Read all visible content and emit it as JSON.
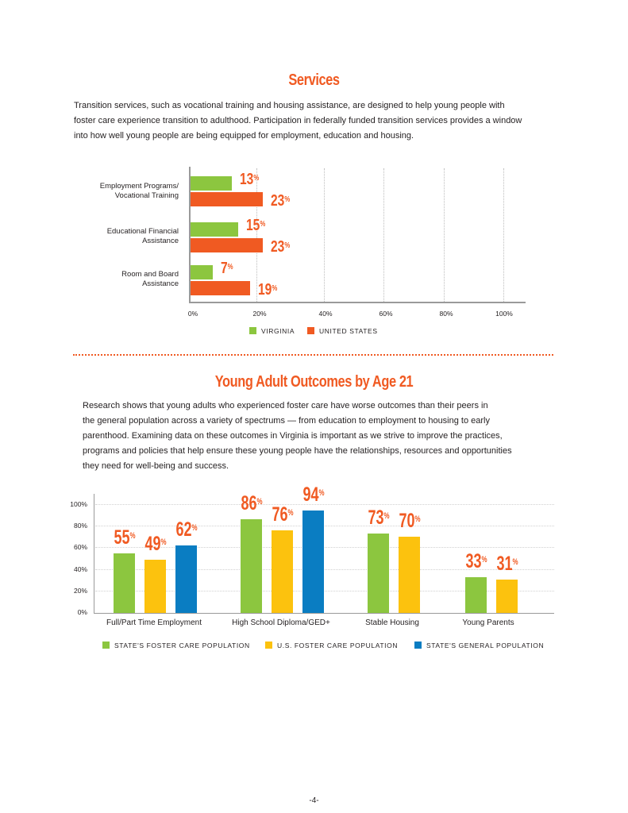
{
  "services": {
    "title": "Services",
    "paragraph_lines": [
      "Transition services, such as vocational training and housing assistance, are designed to help young people with",
      "foster care experience transition to adulthood. Participation in federally funded transition services provides a window",
      "into how well young people are being equipped for employment, education and housing."
    ]
  },
  "outcomes": {
    "title": "Young Adult Outcomes by Age 21",
    "paragraph_lines": [
      "Research shows that young adults who experienced foster care have worse outcomes than their peers in",
      "the general population across a variety of spectrums — from education to employment to housing to early",
      "parenthood. Examining data on these outcomes in Virginia is important as we strive to improve the practices,",
      "programs and policies that help ensure these young people have the relationships, resources and opportunities",
      "they need for well-being and success."
    ]
  },
  "page_number": "-4-",
  "colors": {
    "green": "#8cc63f",
    "orange": "#f05a22",
    "yellow": "#fcc20e",
    "blue": "#0a7dc2"
  },
  "chart_data": [
    {
      "type": "bar",
      "orientation": "horizontal",
      "categories": [
        [
          "Employment Programs/",
          "Vocational Training"
        ],
        [
          "Educational Financial",
          "Assistance"
        ],
        [
          "Room and Board",
          "Assistance"
        ]
      ],
      "series": [
        {
          "name": "VIRGINIA",
          "values": [
            13,
            15,
            7
          ],
          "labels": [
            "13",
            "15",
            "7"
          ]
        },
        {
          "name": "UNITED STATES",
          "values": [
            23,
            23,
            19
          ],
          "labels": [
            "23",
            "23",
            "19"
          ]
        }
      ],
      "value_suffix": "%",
      "xlim": [
        0,
        100
      ],
      "xticks": [
        "0%",
        "20%",
        "40%",
        "60%",
        "80%",
        "100%"
      ],
      "grid": true,
      "legend": "bottom"
    },
    {
      "type": "bar",
      "categories": [
        "Full/Part Time Employment",
        "High School Diploma/GED+",
        "Stable Housing",
        "Young Parents"
      ],
      "series": [
        {
          "name": "STATE'S FOSTER CARE POPULATION",
          "values": [
            55,
            86,
            73,
            33
          ],
          "labels": [
            "55",
            "86",
            "73",
            "33"
          ]
        },
        {
          "name": "U.S. FOSTER CARE POPULATION",
          "values": [
            49,
            76,
            70,
            31
          ],
          "labels": [
            "49",
            "76",
            "70",
            "31"
          ]
        },
        {
          "name": "STATE'S GENERAL POPULATION",
          "values": [
            62,
            94,
            null,
            null
          ],
          "labels": [
            "62",
            "94",
            "",
            ""
          ]
        }
      ],
      "value_suffix": "%",
      "ylim": [
        0,
        100
      ],
      "yticks": [
        "0%",
        "20%",
        "40%",
        "60%",
        "80%",
        "100%"
      ],
      "grid": true,
      "legend": "bottom"
    }
  ]
}
